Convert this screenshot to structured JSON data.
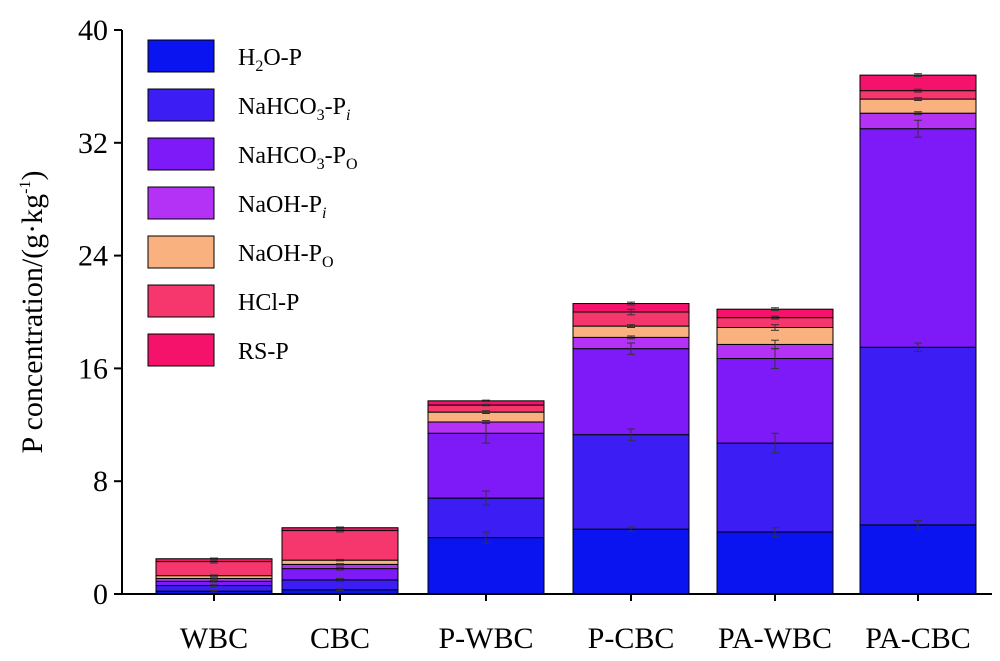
{
  "chart_data": {
    "type": "bar",
    "stacked": true,
    "categories": [
      "WBC",
      "CBC",
      "P-WBC",
      "P-CBC",
      "PA-WBC",
      "PA-CBC"
    ],
    "ylabel": "P concentration/(g·kg-1)",
    "ylabel_parts": {
      "main": "P concentration/(g·kg",
      "sup": "-1",
      "close": ")"
    },
    "ylim": [
      0,
      40
    ],
    "yticks": [
      0,
      8,
      16,
      24,
      32,
      40
    ],
    "legend_position": "top-left",
    "series": [
      {
        "name": "H2O-P",
        "label_parts": {
          "a": "H",
          "sub": "2",
          "b": "O-P"
        },
        "color": "#0A14F0",
        "values": [
          0.2,
          0.3,
          4.0,
          4.6,
          4.4,
          4.9
        ],
        "errors": [
          0.05,
          0.05,
          0.4,
          0.15,
          0.3,
          0.3
        ]
      },
      {
        "name": "NaHCO3-Pi",
        "label_parts": {
          "a": "NaHCO",
          "sub": "3",
          "b": "-P",
          "sub2": "i",
          "sub2_italic": true
        },
        "color": "#3C1EF5",
        "values": [
          0.4,
          0.7,
          2.8,
          6.7,
          6.3,
          12.6
        ],
        "errors": [
          0.05,
          0.1,
          0.5,
          0.4,
          0.7,
          0.3
        ]
      },
      {
        "name": "NaHCO3-PO",
        "label_parts": {
          "a": "NaHCO",
          "sub": "3",
          "b": "-P",
          "sub2": "O",
          "sub2_italic": false
        },
        "color": "#7D1AF7",
        "values": [
          0.3,
          0.8,
          4.6,
          6.1,
          6.0,
          15.5
        ],
        "errors": [
          0.05,
          0.1,
          0.7,
          0.4,
          0.7,
          0.6
        ]
      },
      {
        "name": "NaOH-Pi",
        "label_parts": {
          "a": "NaOH",
          "b": "-P",
          "sub2": "i",
          "sub2_italic": true
        },
        "color": "#B432F5",
        "values": [
          0.2,
          0.3,
          0.8,
          0.8,
          1.0,
          1.1
        ],
        "errors": [
          0.05,
          0.05,
          0.1,
          0.1,
          0.3,
          0.1
        ]
      },
      {
        "name": "NaOH-PO",
        "label_parts": {
          "a": "NaOH",
          "b": "-P",
          "sub2": "O",
          "sub2_italic": false
        },
        "color": "#F9B27F",
        "values": [
          0.2,
          0.3,
          0.7,
          0.8,
          1.2,
          1.0
        ],
        "errors": [
          0.05,
          0.05,
          0.1,
          0.1,
          0.2,
          0.1
        ]
      },
      {
        "name": "HCl-P",
        "label_parts": {
          "a": "HCl-P"
        },
        "color": "#F5376E",
        "values": [
          1.0,
          2.1,
          0.5,
          1.0,
          0.7,
          0.6
        ],
        "errors": [
          0.1,
          0.1,
          0.05,
          0.2,
          0.1,
          0.1
        ]
      },
      {
        "name": "RS-P",
        "label_parts": {
          "a": "RS-P"
        },
        "color": "#F5126A",
        "values": [
          0.2,
          0.2,
          0.3,
          0.6,
          0.6,
          1.1
        ],
        "errors": [
          0.05,
          0.05,
          0.05,
          0.1,
          0.1,
          0.1
        ]
      }
    ]
  }
}
